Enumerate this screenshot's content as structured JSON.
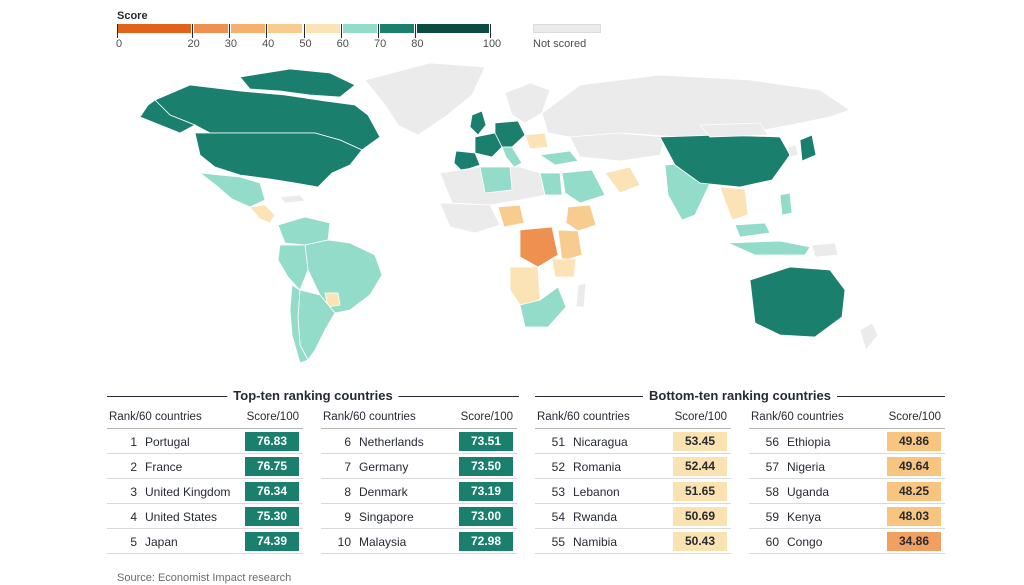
{
  "legend": {
    "title": "Score",
    "bins": [
      {
        "from": 0,
        "to": 20,
        "color": "#e0621b"
      },
      {
        "from": 20,
        "to": 30,
        "color": "#ee9150"
      },
      {
        "from": 30,
        "to": 40,
        "color": "#f5b06e"
      },
      {
        "from": 40,
        "to": 50,
        "color": "#f8cc8e"
      },
      {
        "from": 50,
        "to": 60,
        "color": "#fbe3b6"
      },
      {
        "from": 60,
        "to": 70,
        "color": "#93dcc9"
      },
      {
        "from": 70,
        "to": 80,
        "color": "#1b7f6d"
      },
      {
        "from": 80,
        "to": 100,
        "color": "#0c4b42"
      }
    ],
    "ticks": [
      "0",
      "20",
      "30",
      "40",
      "50",
      "60",
      "70",
      "80",
      "100"
    ],
    "not_scored": {
      "label": "Not scored",
      "color": "#ebebeb"
    }
  },
  "top_ten": {
    "title": "Top-ten ranking countries",
    "rank_header": "Rank/60 countries",
    "score_header": "Score/100",
    "left": [
      {
        "rank": "1",
        "country": "Portugal",
        "score": "76.83"
      },
      {
        "rank": "2",
        "country": "France",
        "score": "76.75"
      },
      {
        "rank": "3",
        "country": "United Kingdom",
        "score": "76.34"
      },
      {
        "rank": "4",
        "country": "United States",
        "score": "75.30"
      },
      {
        "rank": "5",
        "country": "Japan",
        "score": "74.39"
      }
    ],
    "right": [
      {
        "rank": "6",
        "country": "Netherlands",
        "score": "73.51"
      },
      {
        "rank": "7",
        "country": "Germany",
        "score": "73.50"
      },
      {
        "rank": "8",
        "country": "Denmark",
        "score": "73.19"
      },
      {
        "rank": "9",
        "country": "Singapore",
        "score": "73.00"
      },
      {
        "rank": "10",
        "country": "Malaysia",
        "score": "72.98"
      }
    ]
  },
  "bottom_ten": {
    "title": "Bottom-ten ranking countries",
    "rank_header": "Rank/60 countries",
    "score_header": "Score/100",
    "left": [
      {
        "rank": "51",
        "country": "Nicaragua",
        "score": "53.45"
      },
      {
        "rank": "52",
        "country": "Romania",
        "score": "52.44"
      },
      {
        "rank": "53",
        "country": "Lebanon",
        "score": "51.65"
      },
      {
        "rank": "54",
        "country": "Rwanda",
        "score": "50.69"
      },
      {
        "rank": "55",
        "country": "Namibia",
        "score": "50.43"
      }
    ],
    "right": [
      {
        "rank": "56",
        "country": "Ethiopia",
        "score": "49.86"
      },
      {
        "rank": "57",
        "country": "Nigeria",
        "score": "49.64"
      },
      {
        "rank": "58",
        "country": "Uganda",
        "score": "48.25"
      },
      {
        "rank": "59",
        "country": "Kenya",
        "score": "48.03"
      },
      {
        "rank": "60",
        "country": "Congo",
        "score": "34.86"
      }
    ]
  },
  "source": "Source: Economist Impact research"
}
